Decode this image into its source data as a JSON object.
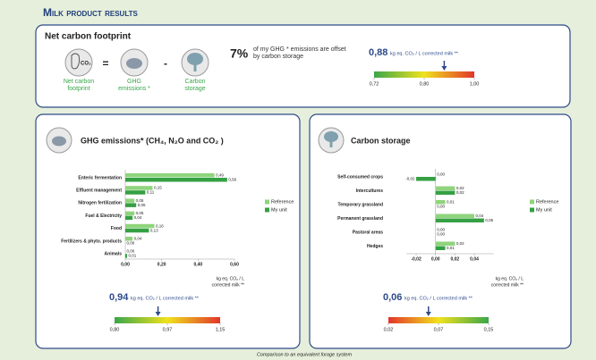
{
  "header": {
    "title": "Milk product results"
  },
  "net_footprint": {
    "title": "Net carbon footprint",
    "items": [
      {
        "label": "Net carbon footprint",
        "icon_text": "CO₂"
      },
      {
        "label": "GHG emissions *"
      },
      {
        "label": "Carbon storage"
      }
    ],
    "operators": [
      "=",
      "-"
    ],
    "offset_value": "7%",
    "offset_text": "of my GHG * emissions are offset by carbon storage"
  },
  "footer": "Comparison to an equivalent forage system",
  "chart_data": [
    {
      "type": "gauge",
      "value": 0.88,
      "value_label": "0,88",
      "unit": "kg eq. CO₂ / L corrected milk **",
      "ticks": [
        {
          "value": 0.72,
          "label": "0,72"
        },
        {
          "value": 0.8,
          "label": "0,80"
        },
        {
          "value": 1.0,
          "label": "1,00"
        }
      ],
      "colors": [
        "#3aa64a",
        "#f0e21e",
        "#e2352a"
      ]
    },
    {
      "type": "bar",
      "orientation": "horizontal",
      "title": "GHG emissions* (CH₄, N₂O and CO₂ )",
      "categories": [
        "Enteric fermentation",
        "Effluent management",
        "Nitrogen fertilization",
        "Fuel & Electricity",
        "Food",
        "Fertilizers & phyto. products",
        "Animals"
      ],
      "series": [
        {
          "name": "Reference",
          "color": "#8fd47c",
          "values": [
            0.49,
            0.15,
            0.05,
            0.05,
            0.16,
            0.04,
            0.0
          ],
          "value_labels": [
            "0,49",
            "0,15",
            "0,05",
            "0,05",
            "0,16",
            "0,04",
            "0,00"
          ]
        },
        {
          "name": "My unit",
          "color": "#35a043",
          "values": [
            0.56,
            0.11,
            0.06,
            0.04,
            0.13,
            0.0,
            0.01
          ],
          "value_labels": [
            "0,56",
            "0,11",
            "0,06",
            "0,04",
            "0,13",
            "0,00",
            "0,01"
          ]
        }
      ],
      "xlim": [
        0,
        0.6
      ],
      "xticks": [
        {
          "value": 0,
          "label": "0,00"
        },
        {
          "value": 0.2,
          "label": "0,20"
        },
        {
          "value": 0.4,
          "label": "0,40"
        },
        {
          "value": 0.6,
          "label": "0,60"
        }
      ],
      "x_label": [
        "kg eq. CO₂ / L",
        "corrected milk **"
      ],
      "legend": "right"
    },
    {
      "type": "gauge",
      "value": 0.94,
      "value_label": "0,94",
      "unit": "kg eq. CO₂ / L corrected milk **",
      "ticks": [
        {
          "value": 0.8,
          "label": "0,80"
        },
        {
          "value": 0.97,
          "label": "0,97"
        },
        {
          "value": 1.15,
          "label": "1,15"
        }
      ],
      "colors": [
        "#3aa64a",
        "#f0e21e",
        "#e2352a"
      ]
    },
    {
      "type": "bar",
      "orientation": "horizontal",
      "title": "Carbon storage",
      "categories": [
        "Self-consumed crops",
        "Intercultures",
        "Temporary grassland",
        "Permanent grassland",
        "Pastoral areas",
        "Hedges"
      ],
      "series": [
        {
          "name": "Reference",
          "color": "#8fd47c",
          "values": [
            0.0,
            0.02,
            0.01,
            0.04,
            0.0,
            0.02
          ],
          "value_labels": [
            "0,00",
            "0,02",
            "0,01",
            "0,04",
            "0,00",
            "0,02"
          ]
        },
        {
          "name": "My unit",
          "color": "#35a043",
          "values": [
            -0.02,
            0.02,
            0.0,
            0.05,
            0.0,
            0.01
          ],
          "value_labels": [
            "-0,02",
            "0,02",
            "0,00",
            "0,05",
            "0,00",
            "0,01"
          ]
        }
      ],
      "xlim": [
        -0.03,
        0.06
      ],
      "xticks": [
        {
          "value": -0.02,
          "label": "-0,02"
        },
        {
          "value": 0,
          "label": "0,00"
        },
        {
          "value": 0.02,
          "label": "0,02"
        },
        {
          "value": 0.04,
          "label": "0,04"
        }
      ],
      "x_label": [
        "kg eq. CO₂ / L",
        "corrected milk **"
      ],
      "legend": "right"
    },
    {
      "type": "gauge",
      "value": 0.06,
      "value_label": "0,06",
      "unit": "kg eq. CO₂ / L corrected milk **",
      "ticks": [
        {
          "value": 0.02,
          "label": "0,02"
        },
        {
          "value": 0.07,
          "label": "0,07"
        },
        {
          "value": 0.15,
          "label": "0,15"
        }
      ],
      "colors": [
        "#e2352a",
        "#f0e21e",
        "#3aa64a"
      ]
    }
  ]
}
